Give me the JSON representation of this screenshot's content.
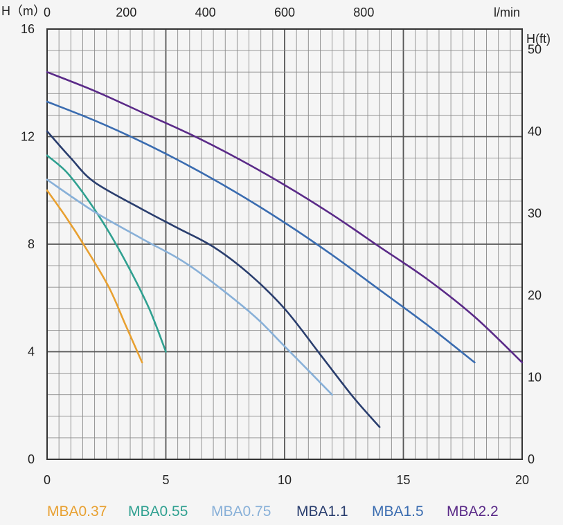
{
  "chart_data": {
    "type": "line",
    "xlabel_top": "l/min",
    "ylabel_left": "H（m）",
    "ylabel_right": "H(ft)",
    "x_bottom": {
      "ticks": [
        0,
        5,
        10,
        15,
        20
      ],
      "lim": [
        0,
        20
      ]
    },
    "x_top": {
      "ticks": [
        0,
        200,
        400,
        600,
        800
      ],
      "lim": [
        0,
        1200
      ]
    },
    "y_left": {
      "ticks": [
        0,
        4,
        8,
        12,
        16
      ],
      "lim": [
        0,
        16
      ]
    },
    "y_right": {
      "ticks": [
        0,
        10,
        20,
        30,
        40,
        50
      ],
      "lim": [
        0,
        52.5
      ]
    },
    "grid": true,
    "legend_position": "bottom",
    "series": [
      {
        "name": "MBA0.37",
        "color": "#e8a030",
        "x": [
          0,
          0.8,
          1.6,
          2.6,
          3.3,
          4.0
        ],
        "y": [
          10.0,
          9.0,
          7.9,
          6.4,
          5.0,
          3.6
        ]
      },
      {
        "name": "MBA0.55",
        "color": "#2fa090",
        "x": [
          0,
          0.8,
          1.6,
          2.5,
          3.4,
          4.3,
          5.0
        ],
        "y": [
          11.3,
          10.7,
          9.8,
          8.6,
          7.2,
          5.6,
          4.0
        ]
      },
      {
        "name": "MBA0.75",
        "color": "#88b0d8",
        "x": [
          0,
          2.0,
          4.0,
          6.0,
          8.5,
          10.0,
          12.0
        ],
        "y": [
          10.4,
          9.2,
          8.2,
          7.2,
          5.5,
          4.2,
          2.4
        ]
      },
      {
        "name": "MBA1.1",
        "color": "#2a3e6e",
        "x": [
          0,
          1.0,
          2.0,
          4.0,
          5.5,
          7.0,
          8.5,
          10.0,
          11.5,
          12.9,
          14.0
        ],
        "y": [
          12.2,
          11.2,
          10.3,
          9.3,
          8.6,
          7.9,
          6.9,
          5.6,
          3.9,
          2.3,
          1.2
        ]
      },
      {
        "name": "MBA1.5",
        "color": "#3a6cb0",
        "x": [
          0,
          2,
          4,
          6,
          8,
          10,
          12,
          14,
          16,
          18
        ],
        "y": [
          13.3,
          12.6,
          11.8,
          10.9,
          9.9,
          8.8,
          7.6,
          6.3,
          5.0,
          3.6
        ]
      },
      {
        "name": "MBA2.2",
        "color": "#5a2a88",
        "x": [
          0,
          2,
          4,
          6,
          8,
          10,
          12,
          14,
          16,
          18,
          20
        ],
        "y": [
          14.4,
          13.7,
          12.9,
          12.1,
          11.2,
          10.2,
          9.1,
          7.9,
          6.7,
          5.3,
          3.6
        ]
      }
    ]
  }
}
